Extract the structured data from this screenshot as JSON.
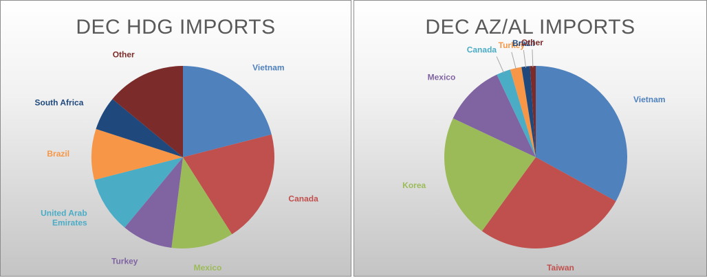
{
  "chart_data": [
    {
      "type": "pie",
      "title": "DEC HDG IMPORTS",
      "slices": [
        {
          "label": "Vietnam",
          "value": 21,
          "color": "#4f81bd"
        },
        {
          "label": "Canada",
          "value": 20,
          "color": "#c0504d"
        },
        {
          "label": "Mexico",
          "value": 11,
          "color": "#9bbb59"
        },
        {
          "label": "Turkey",
          "value": 9,
          "color": "#8064a2"
        },
        {
          "label": "United Arab Emirates",
          "value": 10,
          "color": "#4bacc6"
        },
        {
          "label": "Brazil",
          "value": 9,
          "color": "#f79646"
        },
        {
          "label": "South Africa",
          "value": 6,
          "color": "#1f497d"
        },
        {
          "label": "Other",
          "value": 14,
          "color": "#7b2c2a"
        }
      ]
    },
    {
      "type": "pie",
      "title": "DEC AZ/AL IMPORTS",
      "slices": [
        {
          "label": "Vietnam",
          "value": 33,
          "color": "#4f81bd"
        },
        {
          "label": "Taiwan",
          "value": 27,
          "color": "#c0504d"
        },
        {
          "label": "Korea",
          "value": 22,
          "color": "#9bbb59"
        },
        {
          "label": "Mexico",
          "value": 11,
          "color": "#8064a2"
        },
        {
          "label": "Canada",
          "value": 2.5,
          "color": "#4bacc6"
        },
        {
          "label": "Turkey",
          "value": 2,
          "color": "#f79646"
        },
        {
          "label": "Brazil",
          "value": 1.5,
          "color": "#1f497d"
        },
        {
          "label": "Other",
          "value": 1,
          "color": "#7b2c2a"
        }
      ]
    }
  ]
}
